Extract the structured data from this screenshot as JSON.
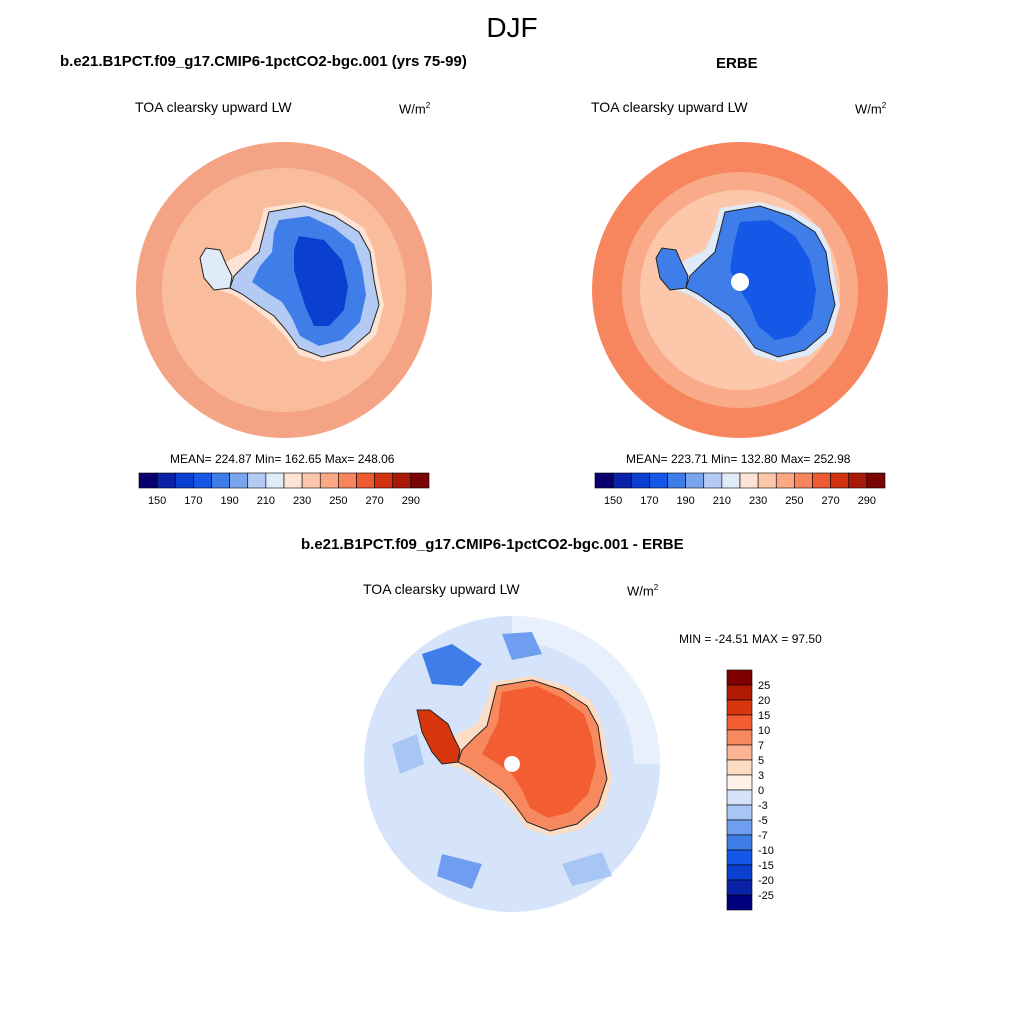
{
  "season": "DJF",
  "colors": {
    "abs_palette": [
      "#08006e",
      "#0a22a8",
      "#0b3fcf",
      "#1557e6",
      "#3f7de8",
      "#7aa6ee",
      "#b3cbf4",
      "#e0ebf9",
      "#fde3d3",
      "#fcc7aa",
      "#fca885",
      "#f7865f",
      "#ee5a31",
      "#d2320f",
      "#a8190a",
      "#7a0403"
    ],
    "diff_palette": [
      "#00007f",
      "#0a22a8",
      "#0b3fcf",
      "#1557e6",
      "#3f7de8",
      "#6f9ef0",
      "#a8c6f4",
      "#d5e4fa",
      "#fdf1e8",
      "#fddcc4",
      "#fbb592",
      "#f8895f",
      "#f25e31",
      "#d8360d",
      "#b01a05",
      "#800000"
    ]
  },
  "panels": {
    "model": {
      "title": "b.e21.B1PCT.f09_g17.CMIP6-1pctCO2-bgc.001 (yrs 75-99)",
      "variable": "TOA clearsky upward LW",
      "units": "W/m",
      "units_exp": "2",
      "stats": "MEAN= 224.87  Min= 162.65  Max= 248.06"
    },
    "obs": {
      "title": "ERBE",
      "variable": "TOA clearsky upward LW",
      "units": "W/m",
      "units_exp": "2",
      "stats": "MEAN= 223.71  Min= 132.80  Max= 252.98"
    },
    "diff": {
      "title": "b.e21.B1PCT.f09_g17.CMIP6-1pctCO2-bgc.001 - ERBE",
      "variable": "TOA clearsky upward LW",
      "units": "W/m",
      "units_exp": "2",
      "stats": "MIN = -24.51 MAX =  97.50"
    }
  },
  "chart_data": [
    {
      "type": "heatmap",
      "projection": "south-polar stereographic",
      "title": "b.e21.B1PCT.f09_g17.CMIP6-1pctCO2-bgc.001 (yrs 75-99)",
      "variable": "TOA clearsky upward LW",
      "units": "W/m2",
      "mean": 224.87,
      "min": 162.65,
      "max": 248.06,
      "colorbar_orientation": "horizontal",
      "colorbar_ticks": [
        150,
        170,
        190,
        210,
        230,
        250,
        270,
        290
      ]
    },
    {
      "type": "heatmap",
      "projection": "south-polar stereographic",
      "title": "ERBE",
      "variable": "TOA clearsky upward LW",
      "units": "W/m2",
      "mean": 223.71,
      "min": 132.8,
      "max": 252.98,
      "colorbar_orientation": "horizontal",
      "colorbar_ticks": [
        150,
        170,
        190,
        210,
        230,
        250,
        270,
        290
      ]
    },
    {
      "type": "heatmap",
      "projection": "south-polar stereographic",
      "title": "b.e21.B1PCT.f09_g17.CMIP6-1pctCO2-bgc.001 - ERBE",
      "variable": "TOA clearsky upward LW",
      "units": "W/m2",
      "min": -24.51,
      "max": 97.5,
      "colorbar_orientation": "vertical",
      "colorbar_ticks": [
        25,
        20,
        15,
        10,
        7,
        5,
        3,
        0,
        -3,
        -5,
        -7,
        -10,
        -15,
        -20,
        -25
      ]
    }
  ]
}
